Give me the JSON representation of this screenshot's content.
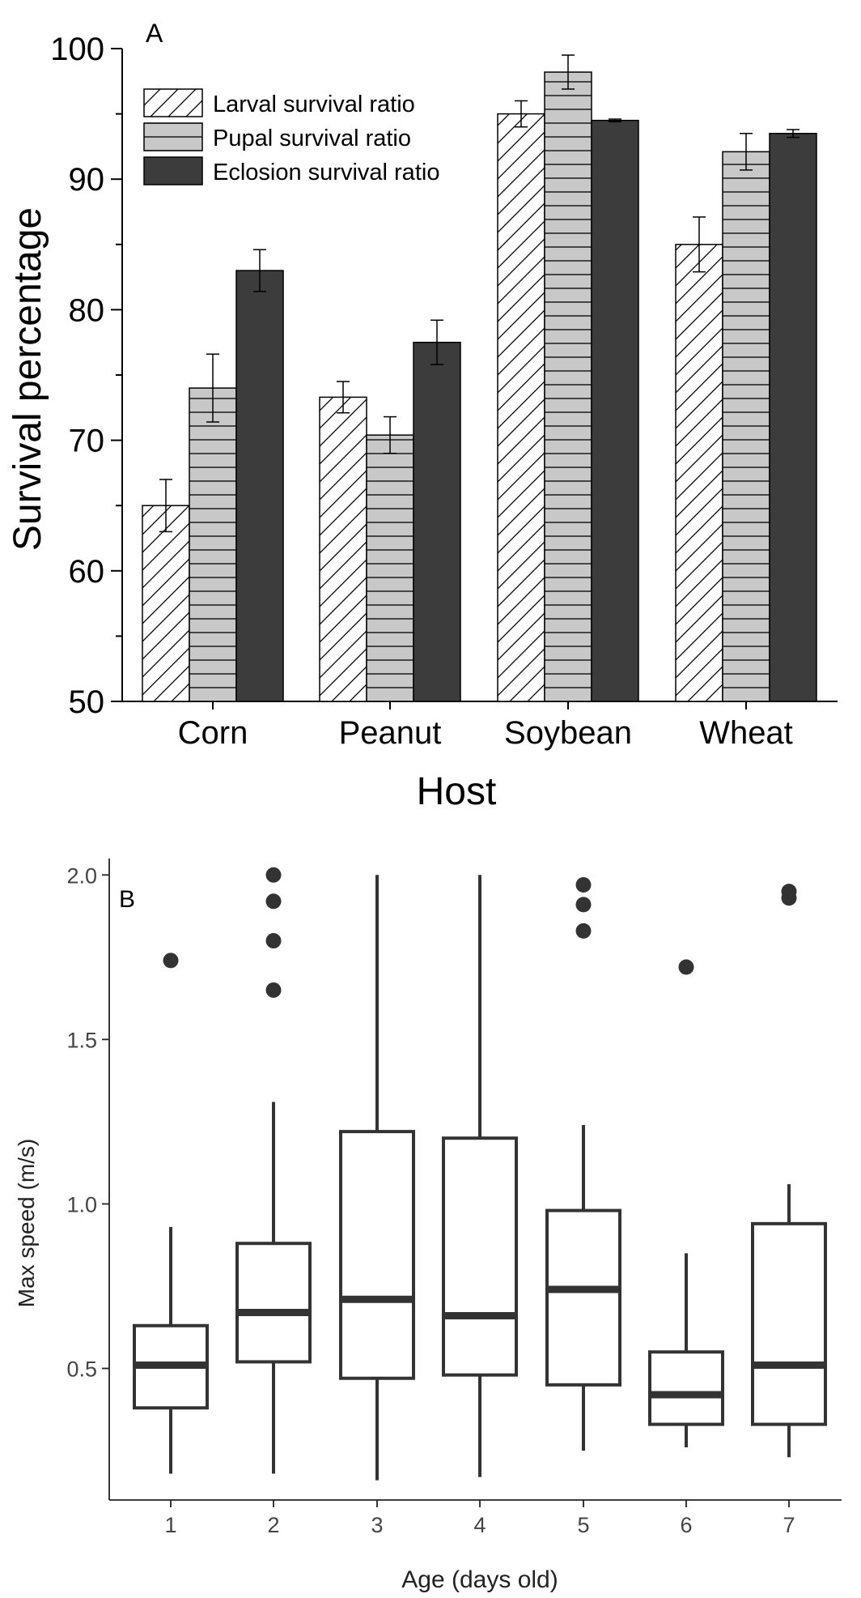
{
  "chart_data": [
    {
      "panel_label": "A",
      "type": "bar",
      "xlabel": "Host",
      "ylabel": "Survival percentage",
      "categories": [
        "Corn",
        "Peanut",
        "Soybean",
        "Wheat"
      ],
      "ylim": [
        50,
        100
      ],
      "yticks": [
        50,
        60,
        70,
        80,
        90,
        100
      ],
      "legend_position": "top-left",
      "series": [
        {
          "name": "Larval survival ratio",
          "pattern": "diagonal-hatch",
          "color": "#ffffff",
          "values": [
            65.0,
            73.3,
            95.0,
            85.0
          ],
          "errors": [
            2.0,
            1.2,
            1.0,
            2.1
          ]
        },
        {
          "name": "Pupal survival ratio",
          "pattern": "horizontal-lines",
          "color": "#c8c8c8",
          "values": [
            74.0,
            70.4,
            98.2,
            92.1
          ],
          "errors": [
            2.6,
            1.4,
            1.3,
            1.4
          ]
        },
        {
          "name": "Eclosion survival ratio",
          "pattern": "solid",
          "color": "#3c3c3c",
          "values": [
            83.0,
            77.5,
            94.5,
            93.5
          ],
          "errors": [
            1.6,
            1.7,
            0.1,
            0.3
          ]
        }
      ]
    },
    {
      "panel_label": "B",
      "type": "boxplot",
      "xlabel": "Age (days old)",
      "ylabel": "Max speed (m/s)",
      "categories": [
        "1",
        "2",
        "3",
        "4",
        "5",
        "6",
        "7"
      ],
      "ylim": [
        0.1,
        2.05
      ],
      "yticks": [
        "0.5",
        "1.0",
        "1.5",
        "2.0"
      ],
      "grid": false,
      "boxes": [
        {
          "whisker_low": 0.18,
          "q1": 0.38,
          "median": 0.51,
          "q3": 0.63,
          "whisker_high": 0.93,
          "outliers": [
            1.74
          ]
        },
        {
          "whisker_low": 0.18,
          "q1": 0.52,
          "median": 0.67,
          "q3": 0.88,
          "whisker_high": 1.31,
          "outliers": [
            1.65,
            1.8,
            1.92,
            2.0
          ]
        },
        {
          "whisker_low": 0.16,
          "q1": 0.47,
          "median": 0.71,
          "q3": 1.22,
          "whisker_high": 2.0,
          "outliers": []
        },
        {
          "whisker_low": 0.17,
          "q1": 0.48,
          "median": 0.66,
          "q3": 1.2,
          "whisker_high": 2.0,
          "outliers": []
        },
        {
          "whisker_low": 0.25,
          "q1": 0.45,
          "median": 0.74,
          "q3": 0.98,
          "whisker_high": 1.24,
          "outliers": [
            1.83,
            1.91,
            1.97
          ]
        },
        {
          "whisker_low": 0.26,
          "q1": 0.33,
          "median": 0.42,
          "q3": 0.55,
          "whisker_high": 0.85,
          "outliers": [
            1.72
          ]
        },
        {
          "whisker_low": 0.23,
          "q1": 0.33,
          "median": 0.51,
          "q3": 0.94,
          "whisker_high": 1.06,
          "outliers": [
            1.93,
            1.95
          ]
        }
      ]
    }
  ]
}
